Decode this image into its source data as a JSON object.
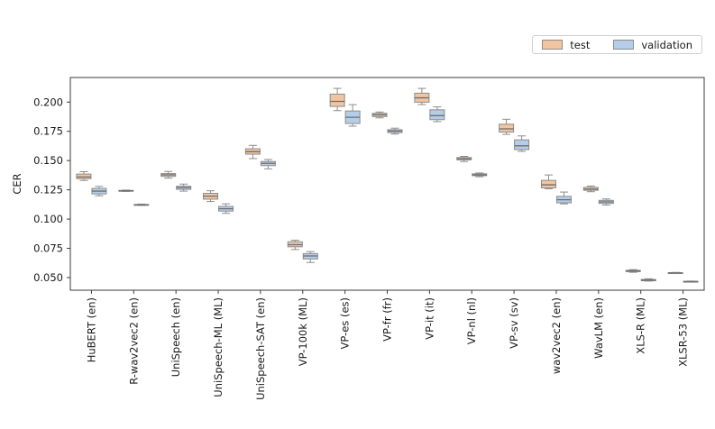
{
  "legend": {
    "items": [
      {
        "label": "test",
        "color": "#f2c5a0"
      },
      {
        "label": "validation",
        "color": "#b5cde9"
      }
    ]
  },
  "chart_data": {
    "type": "boxplot",
    "title": "",
    "xlabel": "",
    "ylabel": "CER",
    "ylim": [
      0.0392,
      0.221
    ],
    "yticks": [
      0.05,
      0.075,
      0.1,
      0.125,
      0.15,
      0.175,
      0.2
    ],
    "grid": false,
    "legend_position": "top-right above axes",
    "categories": [
      "HuBERT (en)",
      "R-wav2vec2 (en)",
      "UniSpeech (en)",
      "UniSpeech-ML (ML)",
      "UniSpeech-SAT (en)",
      "VP-100k (ML)",
      "VP-es (es)",
      "VP-fr (fr)",
      "VP-it (it)",
      "VP-nl (nl)",
      "VP-sv (sv)",
      "wav2vec2 (en)",
      "WavLM (en)",
      "XLS-R (ML)",
      "XLSR-53 (ML)"
    ],
    "series": [
      {
        "name": "test",
        "fill": "#f2c5a0",
        "line": "#8c8c8c",
        "boxes": [
          {
            "lo": 0.133,
            "q1": 0.1345,
            "med": 0.136,
            "q3": 0.1385,
            "hi": 0.1405
          },
          {
            "lo": 0.1236,
            "q1": 0.1239,
            "med": 0.1242,
            "q3": 0.1245,
            "hi": 0.1248
          },
          {
            "lo": 0.135,
            "q1": 0.1365,
            "med": 0.1378,
            "q3": 0.1389,
            "hi": 0.1407
          },
          {
            "lo": 0.115,
            "q1": 0.117,
            "med": 0.1196,
            "q3": 0.122,
            "hi": 0.1242
          },
          {
            "lo": 0.1517,
            "q1": 0.1555,
            "med": 0.1576,
            "q3": 0.1601,
            "hi": 0.163
          },
          {
            "lo": 0.074,
            "q1": 0.0763,
            "med": 0.0781,
            "q3": 0.0806,
            "hi": 0.0819
          },
          {
            "lo": 0.1927,
            "q1": 0.1963,
            "med": 0.2006,
            "q3": 0.2068,
            "hi": 0.2117
          },
          {
            "lo": 0.1865,
            "q1": 0.1876,
            "med": 0.1891,
            "q3": 0.1904,
            "hi": 0.1915
          },
          {
            "lo": 0.1979,
            "q1": 0.1999,
            "med": 0.2036,
            "q3": 0.2076,
            "hi": 0.2117
          },
          {
            "lo": 0.1492,
            "q1": 0.1506,
            "med": 0.1516,
            "q3": 0.1526,
            "hi": 0.1536
          },
          {
            "lo": 0.1724,
            "q1": 0.1744,
            "med": 0.1771,
            "q3": 0.1811,
            "hi": 0.1853
          },
          {
            "lo": 0.1259,
            "q1": 0.1267,
            "med": 0.1293,
            "q3": 0.1331,
            "hi": 0.1377
          },
          {
            "lo": 0.1234,
            "q1": 0.1246,
            "med": 0.1256,
            "q3": 0.1271,
            "hi": 0.1282
          },
          {
            "lo": 0.0545,
            "q1": 0.0551,
            "med": 0.0556,
            "q3": 0.0562,
            "hi": 0.0568
          },
          {
            "lo": 0.0536,
            "q1": 0.0538,
            "med": 0.054,
            "q3": 0.0542,
            "hi": 0.0544
          }
        ]
      },
      {
        "name": "validation",
        "fill": "#b5cde9",
        "line": "#8c8c8c",
        "boxes": [
          {
            "lo": 0.1199,
            "q1": 0.1215,
            "med": 0.1239,
            "q3": 0.1262,
            "hi": 0.1279
          },
          {
            "lo": 0.1116,
            "q1": 0.1119,
            "med": 0.1122,
            "q3": 0.1125,
            "hi": 0.1128
          },
          {
            "lo": 0.1239,
            "q1": 0.1254,
            "med": 0.1268,
            "q3": 0.1281,
            "hi": 0.1299
          },
          {
            "lo": 0.1049,
            "q1": 0.1068,
            "med": 0.1088,
            "q3": 0.1108,
            "hi": 0.113
          },
          {
            "lo": 0.1429,
            "q1": 0.1457,
            "med": 0.1476,
            "q3": 0.1492,
            "hi": 0.1509
          },
          {
            "lo": 0.0629,
            "q1": 0.0659,
            "med": 0.0685,
            "q3": 0.0705,
            "hi": 0.0722
          },
          {
            "lo": 0.1794,
            "q1": 0.1817,
            "med": 0.187,
            "q3": 0.1924,
            "hi": 0.1978
          },
          {
            "lo": 0.1727,
            "q1": 0.1739,
            "med": 0.1752,
            "q3": 0.1764,
            "hi": 0.1777
          },
          {
            "lo": 0.1833,
            "q1": 0.185,
            "med": 0.1884,
            "q3": 0.1934,
            "hi": 0.1959
          },
          {
            "lo": 0.1362,
            "q1": 0.1371,
            "med": 0.1378,
            "q3": 0.1387,
            "hi": 0.1394
          },
          {
            "lo": 0.1579,
            "q1": 0.1594,
            "med": 0.1626,
            "q3": 0.1677,
            "hi": 0.1711
          },
          {
            "lo": 0.113,
            "q1": 0.1139,
            "med": 0.1165,
            "q3": 0.1194,
            "hi": 0.1231
          },
          {
            "lo": 0.112,
            "q1": 0.1134,
            "med": 0.1147,
            "q3": 0.116,
            "hi": 0.1172
          },
          {
            "lo": 0.047,
            "q1": 0.0473,
            "med": 0.0478,
            "q3": 0.0484,
            "hi": 0.049
          },
          {
            "lo": 0.0462,
            "q1": 0.0464,
            "med": 0.0466,
            "q3": 0.0468,
            "hi": 0.047
          }
        ]
      }
    ]
  }
}
